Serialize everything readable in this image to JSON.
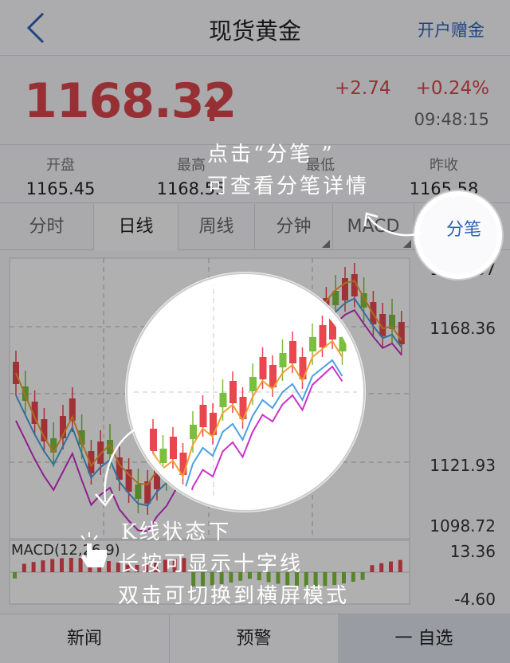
{
  "nav": {
    "title": "现货黄金",
    "gift": "开户赠金",
    "back_icon": "chevron-left-icon"
  },
  "quote": {
    "price": "1168.32",
    "change": "+2.74",
    "pct": "+0.24%",
    "time": "09:48:15",
    "up_color": "#d9464b"
  },
  "stats": [
    {
      "label": "开盘",
      "value": "1165.45"
    },
    {
      "label": "最高",
      "value": "1168.55"
    },
    {
      "label": "最低",
      "value": ""
    },
    {
      "label": "昨收",
      "value": "1165.58"
    }
  ],
  "tabs": [
    {
      "label": "分时",
      "active": false
    },
    {
      "label": "日线",
      "active": true
    },
    {
      "label": "周线",
      "active": false
    },
    {
      "label": "分钟",
      "active": false
    },
    {
      "label": "MACD",
      "active": false
    },
    {
      "label": "分笔",
      "active": false
    }
  ],
  "chart": {
    "price_labels": [
      "1191.57",
      "1168.36",
      "1121.93",
      "1098.72"
    ],
    "macd_label": "MACD(12,26,9)",
    "macd_labels": [
      "13.36",
      "-4.60"
    ]
  },
  "bottom": {
    "news": "新闻",
    "alert": "预警",
    "fav": "一 自选"
  },
  "hints": {
    "tick": [
      "点击“分笔 ”",
      "可查看分笔详情"
    ],
    "kline": [
      "K线状态下",
      "长按可显示十字线",
      "双击可切换到横屏模式"
    ]
  },
  "colors": {
    "accent": "#2f62b8",
    "up": "#e8474f",
    "down": "#7bbf3e",
    "ma5": "#f0a030",
    "ma10": "#4aa0e0",
    "ma20": "#cc2fcc"
  }
}
